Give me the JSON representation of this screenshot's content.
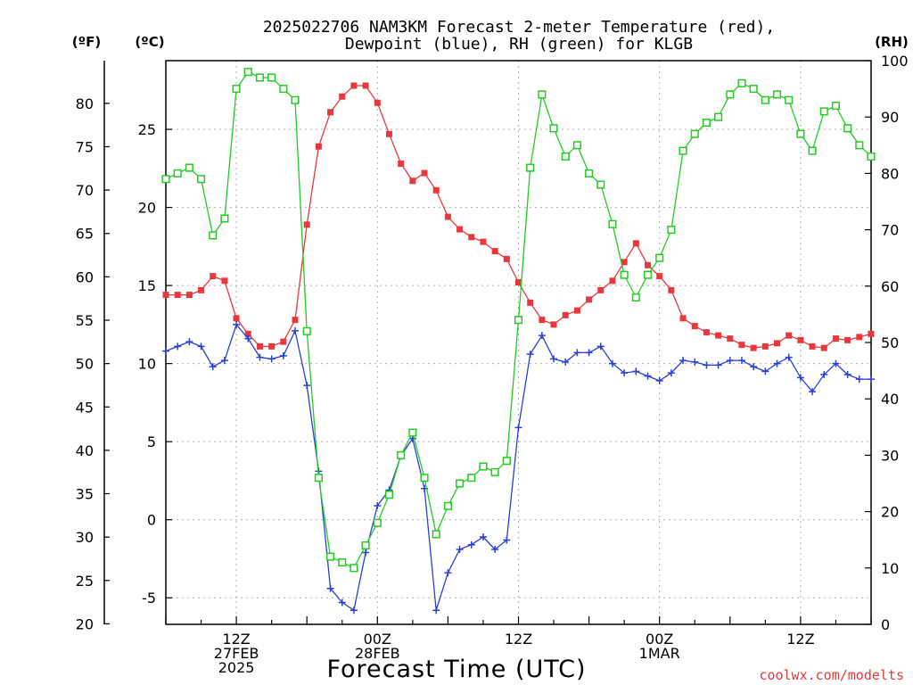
{
  "title_lines": [
    "2025022706 NAM3KM Forecast 2-meter Temperature (red),",
    "Dewpoint (blue), RH (green) for KLGB"
  ],
  "credit": "coolwx.com/modelts",
  "colors": {
    "temperature": "#e8383d",
    "dewpoint": "#2a3fd6",
    "rh": "#22cc22",
    "grid": "#b0b0b0"
  },
  "chart_data": {
    "type": "line",
    "xlabel": "Forecast Time (UTC)",
    "x_units": "forecast hour from 2025-02-27 06Z",
    "x_tick_labels": [
      {
        "hour": 6,
        "lines": [
          "12Z",
          "27FEB",
          "2025"
        ]
      },
      {
        "hour": 18,
        "lines": [
          "00Z",
          "28FEB"
        ]
      },
      {
        "hour": 30,
        "lines": [
          "12Z"
        ]
      },
      {
        "hour": 42,
        "lines": [
          "00Z",
          "1MAR"
        ]
      },
      {
        "hour": 54,
        "lines": [
          "12Z"
        ]
      }
    ],
    "xlim": [
      0,
      60
    ],
    "axes": {
      "fahrenheit": {
        "label": "(ºF)",
        "ticks": [
          20,
          25,
          30,
          35,
          40,
          45,
          50,
          55,
          60,
          65,
          70,
          75,
          80
        ]
      },
      "celsius": {
        "label": "(ºC)",
        "ticks": [
          -5,
          0,
          5,
          10,
          15,
          20,
          25
        ],
        "ylim": [
          -6.7,
          29.4
        ]
      },
      "rh": {
        "label": "(RH)",
        "ticks": [
          0,
          10,
          20,
          30,
          40,
          50,
          60,
          70,
          80,
          90,
          100
        ],
        "ylim": [
          0,
          100
        ]
      }
    },
    "grid": true,
    "series": [
      {
        "name": "2-meter Temperature",
        "axis": "celsius",
        "marker": "filled-square",
        "x": [
          0,
          1,
          2,
          3,
          4,
          5,
          6,
          7,
          8,
          9,
          10,
          11,
          12,
          13,
          14,
          15,
          16,
          17,
          18,
          19,
          20,
          21,
          22,
          23,
          24,
          25,
          26,
          27,
          28,
          29,
          30,
          31,
          32,
          33,
          34,
          35,
          36,
          37,
          38,
          39,
          40,
          41,
          42,
          43,
          44,
          45,
          46,
          47,
          48,
          49,
          50,
          51,
          52,
          53,
          54,
          55,
          56,
          57,
          58,
          59,
          60
        ],
        "values": [
          14.4,
          14.4,
          14.4,
          14.7,
          15.6,
          15.3,
          12.9,
          11.9,
          11.1,
          11.1,
          11.4,
          12.8,
          18.9,
          23.9,
          26.1,
          27.1,
          27.8,
          27.8,
          26.7,
          24.7,
          22.8,
          21.7,
          22.2,
          21.1,
          19.4,
          18.6,
          18.1,
          17.8,
          17.2,
          16.7,
          15.2,
          13.9,
          12.8,
          12.5,
          13.1,
          13.4,
          14.1,
          14.7,
          15.3,
          16.5,
          17.7,
          16.3,
          15.6,
          14.7,
          12.9,
          12.4,
          12.0,
          11.8,
          11.6,
          11.2,
          11.0,
          11.1,
          11.3,
          11.8,
          11.5,
          11.1,
          11.0,
          11.6,
          11.5,
          11.7,
          11.9
        ]
      },
      {
        "name": "Dewpoint",
        "axis": "celsius",
        "marker": "plus",
        "x": [
          0,
          1,
          2,
          3,
          4,
          5,
          6,
          7,
          8,
          9,
          10,
          11,
          12,
          13,
          14,
          15,
          16,
          17,
          18,
          19,
          20,
          21,
          22,
          23,
          24,
          25,
          26,
          27,
          28,
          29,
          30,
          31,
          32,
          33,
          34,
          35,
          36,
          37,
          38,
          39,
          40,
          41,
          42,
          43,
          44,
          45,
          46,
          47,
          48,
          49,
          50,
          51,
          52,
          53,
          54,
          55,
          56,
          57,
          58,
          59,
          60
        ],
        "values": [
          10.8,
          11.1,
          11.4,
          11.1,
          9.8,
          10.2,
          12.5,
          11.6,
          10.4,
          10.3,
          10.5,
          12.1,
          8.6,
          3.1,
          -4.4,
          -5.3,
          -5.8,
          -2.1,
          0.9,
          1.9,
          4.1,
          5.2,
          2.0,
          -5.8,
          -3.4,
          -1.9,
          -1.6,
          -1.1,
          -1.9,
          -1.3,
          5.9,
          10.6,
          11.8,
          10.3,
          10.1,
          10.7,
          10.7,
          11.1,
          10.0,
          9.4,
          9.5,
          9.2,
          8.9,
          9.4,
          10.2,
          10.1,
          9.9,
          9.9,
          10.2,
          10.2,
          9.8,
          9.5,
          10.0,
          10.4,
          9.1,
          8.2,
          9.3,
          10.0,
          9.3,
          9.0,
          9.0
        ]
      },
      {
        "name": "RH",
        "axis": "rh",
        "marker": "open-square",
        "x": [
          0,
          1,
          2,
          3,
          4,
          5,
          6,
          7,
          8,
          9,
          10,
          11,
          12,
          13,
          14,
          15,
          16,
          17,
          18,
          19,
          20,
          21,
          22,
          23,
          24,
          25,
          26,
          27,
          28,
          29,
          30,
          31,
          32,
          33,
          34,
          35,
          36,
          37,
          38,
          39,
          40,
          41,
          42,
          43,
          44,
          45,
          46,
          47,
          48,
          49,
          50,
          51,
          52,
          53,
          54,
          55,
          56,
          57,
          58,
          59,
          60
        ],
        "values": [
          79,
          80,
          81,
          79,
          69,
          72,
          95,
          98,
          97,
          97,
          95,
          93,
          52,
          26,
          12,
          11,
          10,
          14,
          18,
          23,
          30,
          34,
          26,
          16,
          21,
          25,
          26,
          28,
          27,
          29,
          54,
          81,
          94,
          88,
          83,
          85,
          80,
          78,
          71,
          62,
          58,
          62,
          65,
          70,
          84,
          87,
          89,
          90,
          94,
          96,
          95,
          93,
          94,
          93,
          87,
          84,
          91,
          92,
          88,
          85,
          83
        ]
      }
    ]
  }
}
